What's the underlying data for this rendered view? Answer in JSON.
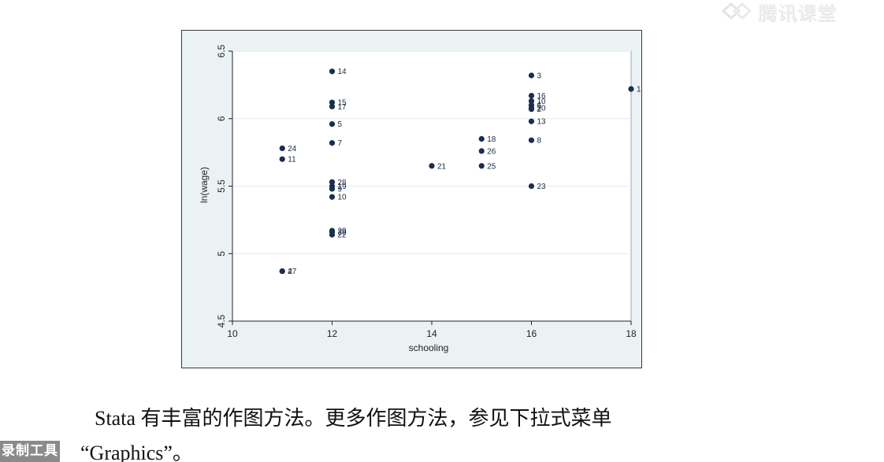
{
  "watermark": {
    "text": "腾讯课堂"
  },
  "caption": {
    "line1": "Stata 有丰富的作图方法。更多作图方法，参见下拉式菜单",
    "line2": "“Graphics”。"
  },
  "recorder_badge": {
    "text": "录制工具"
  },
  "colors": {
    "marker": "#1a2f4f",
    "plot_bg": "#ffffff",
    "outer_bg": "#eaf2f3",
    "grid": "#e2eaea",
    "axis": "#222222"
  },
  "chart_data": {
    "type": "scatter",
    "title": "",
    "xlabel": "schooling",
    "ylabel": "ln(wage)",
    "xlim": [
      10,
      18
    ],
    "ylim": [
      4.5,
      6.5
    ],
    "xticks": [
      "10",
      "12",
      "14",
      "16",
      "18"
    ],
    "yticks": [
      "4.5",
      "5",
      "5.5",
      "6",
      "6.5"
    ],
    "grid": true,
    "points": [
      {
        "x": 18,
        "y": 6.22,
        "label": "1"
      },
      {
        "x": 16,
        "y": 6.32,
        "label": "3"
      },
      {
        "x": 12,
        "y": 6.35,
        "label": "14"
      },
      {
        "x": 16,
        "y": 6.17,
        "label": "16"
      },
      {
        "x": 16,
        "y": 6.13,
        "label": "10"
      },
      {
        "x": 16,
        "y": 6.1,
        "label": "6"
      },
      {
        "x": 16,
        "y": 6.08,
        "label": "20"
      },
      {
        "x": 16,
        "y": 6.07,
        "label": "2"
      },
      {
        "x": 12,
        "y": 6.12,
        "label": "15"
      },
      {
        "x": 12,
        "y": 6.09,
        "label": "17"
      },
      {
        "x": 16,
        "y": 5.98,
        "label": "13"
      },
      {
        "x": 12,
        "y": 5.96,
        "label": "5"
      },
      {
        "x": 15,
        "y": 5.85,
        "label": "18"
      },
      {
        "x": 16,
        "y": 5.84,
        "label": "8"
      },
      {
        "x": 12,
        "y": 5.82,
        "label": "7"
      },
      {
        "x": 11,
        "y": 5.78,
        "label": "24"
      },
      {
        "x": 15,
        "y": 5.76,
        "label": "26"
      },
      {
        "x": 11,
        "y": 5.7,
        "label": "11"
      },
      {
        "x": 14,
        "y": 5.65,
        "label": "21"
      },
      {
        "x": 15,
        "y": 5.65,
        "label": "25"
      },
      {
        "x": 12,
        "y": 5.53,
        "label": "28"
      },
      {
        "x": 16,
        "y": 5.5,
        "label": "23"
      },
      {
        "x": 12,
        "y": 5.5,
        "label": "19"
      },
      {
        "x": 12,
        "y": 5.48,
        "label": "9"
      },
      {
        "x": 12,
        "y": 5.42,
        "label": "10"
      },
      {
        "x": 12,
        "y": 5.17,
        "label": "29"
      },
      {
        "x": 12,
        "y": 5.16,
        "label": "30"
      },
      {
        "x": 12,
        "y": 5.14,
        "label": "22"
      },
      {
        "x": 11,
        "y": 4.87,
        "label": "27"
      },
      {
        "x": 11,
        "y": 4.87,
        "label": "4"
      }
    ]
  }
}
